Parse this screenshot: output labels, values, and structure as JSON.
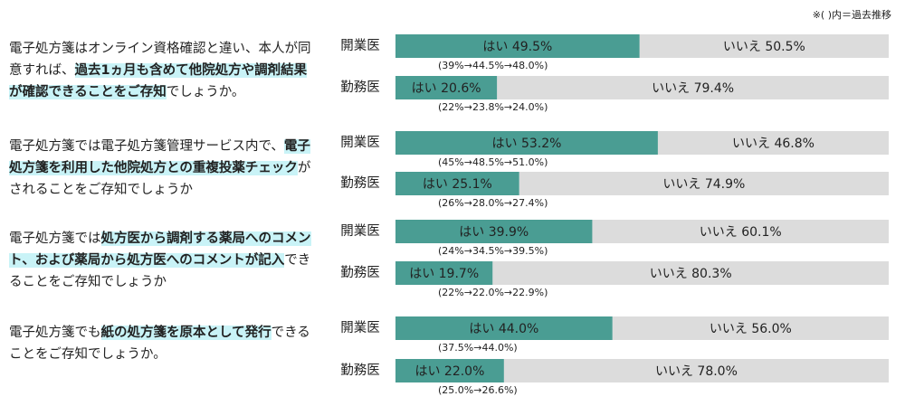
{
  "chart_data": {
    "type": "stacked-hbar-100",
    "note": "※( )内＝過去推移",
    "categories": [
      "開業医",
      "勤務医",
      "開業医",
      "勤務医",
      "開業医",
      "勤務医",
      "開業医",
      "勤務医"
    ],
    "xlim": [
      0,
      100
    ],
    "series": [
      {
        "color": "#4a9d93",
        "values": [
          49.5,
          20.6,
          53.2,
          25.1,
          39.9,
          19.7,
          44.0,
          22.0
        ],
        "value_labels": [
          "はい 49.5%",
          "はい 20.6%",
          "はい 53.2%",
          "はい 25.1%",
          "はい 39.9%",
          "はい 19.7%",
          "はい 44.0%",
          "はい 22.0%"
        ]
      },
      {
        "color": "#dcdcdc",
        "values": [
          50.5,
          79.4,
          46.8,
          74.9,
          60.1,
          80.3,
          56.0,
          78.0
        ],
        "value_labels": [
          "いいえ 50.5%",
          "いいえ 79.4%",
          "いいえ 46.8%",
          "いいえ 74.9%",
          "いいえ 60.1%",
          "いいえ 80.3%",
          "いいえ 56.0%",
          "いいえ 78.0%"
        ]
      }
    ],
    "trend_labels": [
      "(39%→44.5%→48.0%)",
      "(22%→23.8%→24.0%)",
      "(45%→48.5%→51.0%)",
      "(26%→28.0%→27.4%)",
      "(24%→34.5%→39.5%)",
      "(22%→22.0%→22.9%)",
      "(37.5%→44.0%)",
      "(25.0%→26.6%)"
    ],
    "questions": [
      {
        "segments": [
          {
            "text": "電子処方箋はオンライン資格確認と違い、本人が同意すれば、",
            "highlight": false
          },
          {
            "text": "過去1ヵ月も含めて他院処方や調剤結果が確認できることをご存知",
            "highlight": true
          },
          {
            "text": "でしょうか。",
            "highlight": false
          }
        ]
      },
      {
        "segments": [
          {
            "text": "電子処方箋では電子処方箋管理サービス内で、",
            "highlight": false
          },
          {
            "text": "電子処方箋を利用した他院処方との重複投薬チェック",
            "highlight": true
          },
          {
            "text": "がされることをご存知でしょうか",
            "highlight": false
          }
        ]
      },
      {
        "segments": [
          {
            "text": "電子処方箋では",
            "highlight": false
          },
          {
            "text": "処方医から調剤する薬局へのコメント、および薬局から処方医へのコメントが記入",
            "highlight": true
          },
          {
            "text": "できることをご存知でしょうか",
            "highlight": false
          }
        ]
      },
      {
        "segments": [
          {
            "text": "電子処方箋でも",
            "highlight": false
          },
          {
            "text": "紙の処方箋を原本として発行",
            "highlight": true
          },
          {
            "text": "できることをご存知でしょうか。",
            "highlight": false
          }
        ]
      }
    ]
  }
}
